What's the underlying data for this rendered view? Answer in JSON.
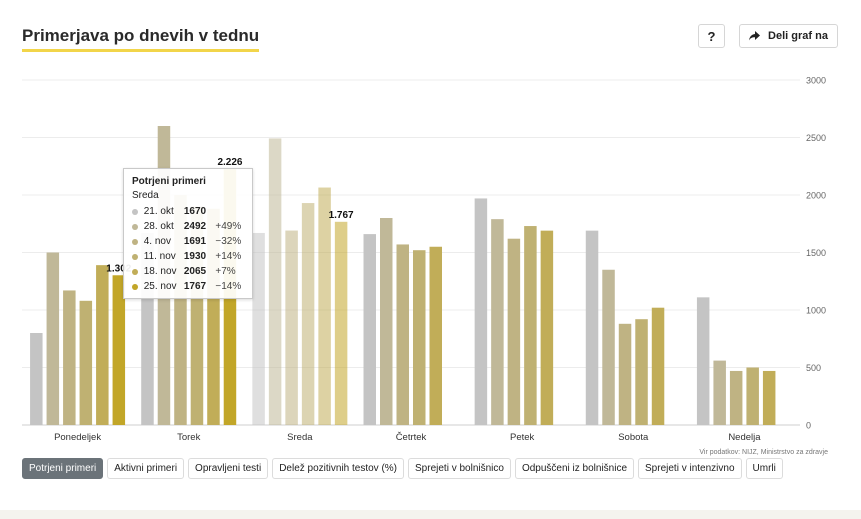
{
  "header": {
    "title": "Primerjava po dnevih v tednu",
    "help_label": "?",
    "share_label": "Deli graf na"
  },
  "chart_data": {
    "type": "bar",
    "categories": [
      "Ponedeljek",
      "Torek",
      "Sreda",
      "Četrtek",
      "Petek",
      "Sobota",
      "Nedelja"
    ],
    "series": [
      {
        "name": "21. okt",
        "color": "#c4c4c4",
        "values": [
          800,
          1670,
          1670,
          1660,
          1970,
          1690,
          1110
        ]
      },
      {
        "name": "28. okt",
        "color": "#c0b898",
        "values": [
          1500,
          2600,
          2492,
          1800,
          1790,
          1350,
          560
        ]
      },
      {
        "name": "4. nov",
        "color": "#bfb383",
        "values": [
          1170,
          2000,
          1691,
          1570,
          1620,
          880,
          470
        ]
      },
      {
        "name": "11. nov",
        "color": "#bfb172",
        "values": [
          1080,
          1900,
          1930,
          1520,
          1730,
          920,
          500
        ]
      },
      {
        "name": "18. nov",
        "color": "#c1ad58",
        "values": [
          1390,
          1880,
          2065,
          1550,
          1690,
          1020,
          470
        ]
      },
      {
        "name": "25. nov",
        "color": "#c2a628",
        "values": [
          1302,
          2226,
          1767,
          null,
          null,
          null,
          null
        ]
      }
    ],
    "highlight_category": "Sreda",
    "data_labels": [
      "1.302",
      "2.226",
      "1.767"
    ],
    "y_ticks": [
      "0",
      "500",
      "1000",
      "1500",
      "2000",
      "2500",
      "3000"
    ],
    "ylim": [
      0,
      3000
    ],
    "y_axis_position": "right",
    "grid": true,
    "source": "Vir podatkov: NIJZ, Ministrstvo za zdravje"
  },
  "tooltip": {
    "title": "Potrjeni primeri",
    "subtitle": "Sreda",
    "rows": [
      {
        "date": "21. okt",
        "value": "1670",
        "change": "",
        "color": "#c4c4c4"
      },
      {
        "date": "28. okt",
        "value": "2492",
        "change": "+49%",
        "color": "#c0b898"
      },
      {
        "date": "4. nov",
        "value": "1691",
        "change": "−32%",
        "color": "#bfb383"
      },
      {
        "date": "11. nov",
        "value": "1930",
        "change": "+14%",
        "color": "#bfb172"
      },
      {
        "date": "18. nov",
        "value": "2065",
        "change": "+7%",
        "color": "#c1ad58"
      },
      {
        "date": "25. nov",
        "value": "1767",
        "change": "−14%",
        "color": "#c2a628"
      }
    ]
  },
  "tabs": [
    {
      "label": "Potrjeni primeri",
      "active": true
    },
    {
      "label": "Aktivni primeri"
    },
    {
      "label": "Opravljeni testi"
    },
    {
      "label": "Delež pozitivnih testov (%)"
    },
    {
      "label": "Sprejeti v bolnišnico"
    },
    {
      "label": "Odpuščeni iz bolnišnice"
    },
    {
      "label": "Sprejeti v intenzivno"
    },
    {
      "label": "Umrli"
    }
  ]
}
